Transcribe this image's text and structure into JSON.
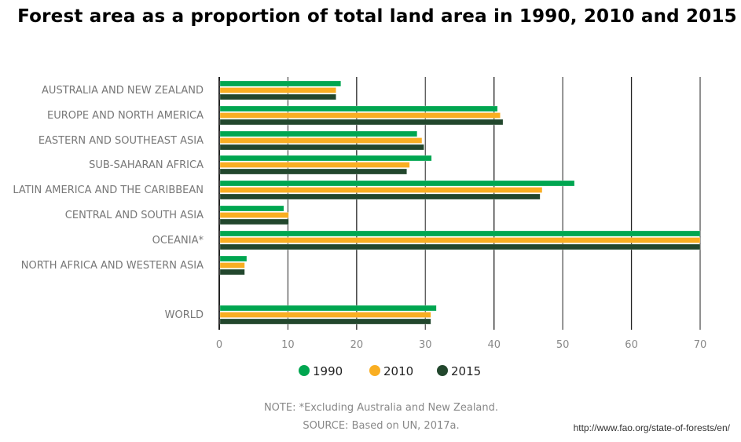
{
  "chart_data": {
    "type": "bar",
    "orientation": "horizontal",
    "title": "Forest area as a proportion of total land area in 1990, 2010 and 2015",
    "categories": [
      "AUSTRALIA AND NEW ZEALAND",
      "EUROPE AND NORTH AMERICA",
      "EASTERN AND SOUTHEAST ASIA",
      "SUB-SAHARAN AFRICA",
      "LATIN AMERICA AND THE CARIBBEAN",
      "CENTRAL AND SOUTH ASIA",
      "OCEANIA*",
      "NORTH AFRICA AND WESTERN ASIA",
      "WORLD"
    ],
    "series": [
      {
        "name": "1990",
        "color": "#00a650",
        "values": [
          17.7,
          40.5,
          28.8,
          30.9,
          51.7,
          9.4,
          70,
          4.0,
          31.6
        ]
      },
      {
        "name": "2010",
        "color": "#f9ae22",
        "values": [
          17.0,
          40.9,
          29.5,
          27.7,
          47.0,
          10.1,
          70,
          3.7,
          30.8
        ]
      },
      {
        "name": "2015",
        "color": "#22472d",
        "values": [
          17.0,
          41.3,
          29.8,
          27.3,
          46.7,
          10.1,
          70,
          3.7,
          30.8
        ]
      }
    ],
    "xlim": [
      0,
      70
    ],
    "xticks": [
      "0",
      "10",
      "20",
      "30",
      "40",
      "50",
      "60",
      "70"
    ],
    "xlabel": "",
    "ylabel": "",
    "grid": true,
    "legend": "bottom"
  },
  "notes": {
    "note": "NOTE: *Excluding Australia and New Zealand.",
    "source": "SOURCE: Based on UN, 2017a."
  },
  "url": "http://www.fao.org/state-of-forests/en/"
}
